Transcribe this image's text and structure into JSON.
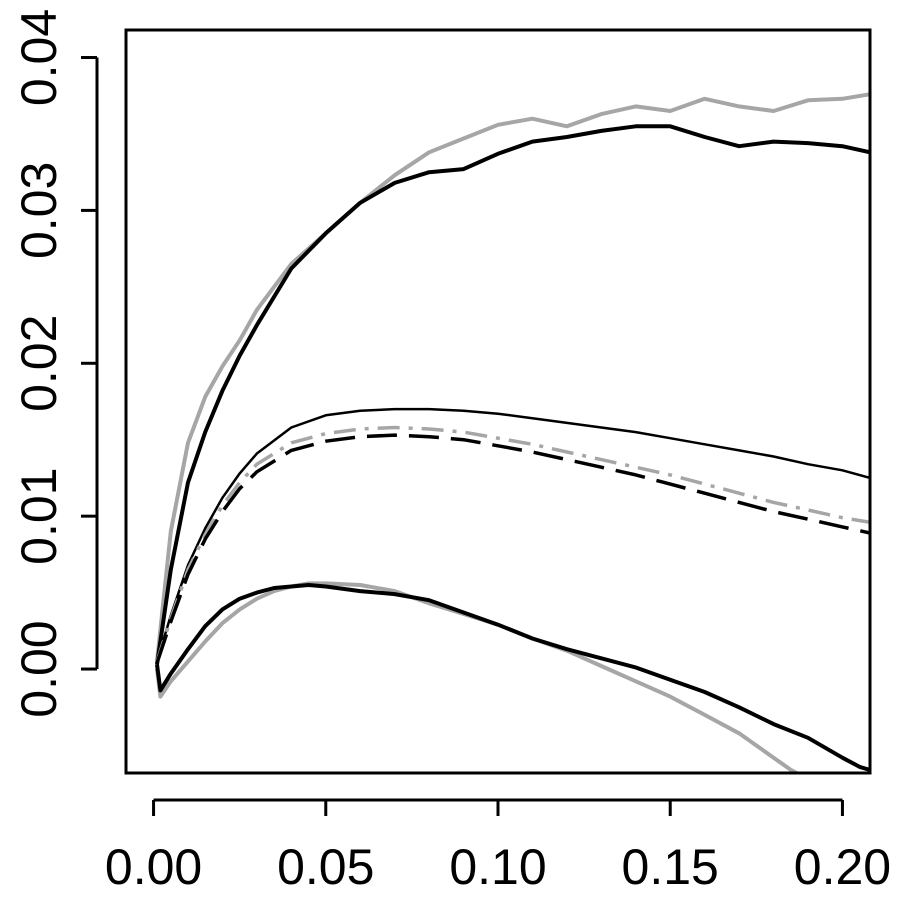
{
  "chart_data": {
    "type": "line",
    "title": "",
    "xlabel": "",
    "ylabel": "",
    "xlim": [
      -0.008,
      0.208
    ],
    "ylim": [
      -0.0068,
      0.0418
    ],
    "x_ticks": [
      0.0,
      0.05,
      0.1,
      0.15,
      0.2
    ],
    "x_tick_labels": [
      "0.00",
      "0.05",
      "0.10",
      "0.15",
      "0.20"
    ],
    "y_ticks": [
      0.0,
      0.01,
      0.02,
      0.03,
      0.04
    ],
    "y_tick_labels": [
      "0.00",
      "0.01",
      "0.02",
      "0.03",
      "0.04"
    ],
    "grid": false,
    "legend": "none",
    "series": [
      {
        "color": "#a6a6a6",
        "dash": "solid",
        "width": 4,
        "x": [
          0.001,
          0.005,
          0.01,
          0.015,
          0.02,
          0.025,
          0.03,
          0.04,
          0.05,
          0.06,
          0.07,
          0.08,
          0.09,
          0.1,
          0.11,
          0.12,
          0.13,
          0.14,
          0.15,
          0.16,
          0.17,
          0.18,
          0.19,
          0.2,
          0.208
        ],
        "y": [
          0.0005,
          0.009,
          0.0148,
          0.0178,
          0.0198,
          0.0215,
          0.0235,
          0.0265,
          0.0285,
          0.0305,
          0.0323,
          0.0338,
          0.0347,
          0.0356,
          0.036,
          0.0355,
          0.0363,
          0.0368,
          0.0365,
          0.0373,
          0.0368,
          0.0365,
          0.0372,
          0.0373,
          0.0376
        ]
      },
      {
        "color": "#000000",
        "dash": "solid",
        "width": 4,
        "x": [
          0.001,
          0.005,
          0.01,
          0.015,
          0.02,
          0.025,
          0.03,
          0.04,
          0.05,
          0.06,
          0.07,
          0.08,
          0.09,
          0.1,
          0.11,
          0.12,
          0.13,
          0.14,
          0.15,
          0.16,
          0.17,
          0.18,
          0.19,
          0.2,
          0.208
        ],
        "y": [
          0.0003,
          0.0065,
          0.0122,
          0.0155,
          0.0182,
          0.0205,
          0.0225,
          0.0262,
          0.0285,
          0.0305,
          0.0318,
          0.0325,
          0.0327,
          0.0337,
          0.0345,
          0.0348,
          0.0352,
          0.0355,
          0.0355,
          0.0348,
          0.0342,
          0.0345,
          0.0344,
          0.0342,
          0.0338
        ]
      },
      {
        "color": "#000000",
        "dash": "solid",
        "width": 2.5,
        "x": [
          0.001,
          0.005,
          0.01,
          0.015,
          0.02,
          0.025,
          0.03,
          0.04,
          0.05,
          0.06,
          0.07,
          0.08,
          0.09,
          0.1,
          0.11,
          0.12,
          0.13,
          0.14,
          0.15,
          0.16,
          0.17,
          0.18,
          0.19,
          0.2,
          0.208
        ],
        "y": [
          0.0005,
          0.0035,
          0.0068,
          0.0092,
          0.0112,
          0.0128,
          0.0141,
          0.0158,
          0.0166,
          0.0169,
          0.017,
          0.017,
          0.0169,
          0.0167,
          0.0164,
          0.0161,
          0.0158,
          0.0155,
          0.0151,
          0.0147,
          0.0143,
          0.0139,
          0.0134,
          0.013,
          0.0125
        ]
      },
      {
        "color": "#a6a6a6",
        "dash": "dashdot",
        "width": 3.5,
        "x": [
          0.001,
          0.005,
          0.01,
          0.015,
          0.02,
          0.025,
          0.03,
          0.04,
          0.05,
          0.06,
          0.07,
          0.08,
          0.09,
          0.1,
          0.11,
          0.12,
          0.13,
          0.14,
          0.15,
          0.16,
          0.17,
          0.18,
          0.19,
          0.2,
          0.208
        ],
        "y": [
          0.0005,
          0.0033,
          0.0065,
          0.0088,
          0.0107,
          0.0122,
          0.0134,
          0.0148,
          0.0154,
          0.0157,
          0.0158,
          0.0157,
          0.0155,
          0.0151,
          0.0147,
          0.0142,
          0.0137,
          0.0132,
          0.0127,
          0.0121,
          0.0115,
          0.0109,
          0.0104,
          0.0099,
          0.0096
        ]
      },
      {
        "color": "#000000",
        "dash": "longdash",
        "width": 3.5,
        "x": [
          0.001,
          0.005,
          0.01,
          0.015,
          0.02,
          0.025,
          0.03,
          0.04,
          0.05,
          0.06,
          0.07,
          0.08,
          0.09,
          0.1,
          0.11,
          0.12,
          0.13,
          0.14,
          0.15,
          0.16,
          0.17,
          0.18,
          0.19,
          0.2,
          0.208
        ],
        "y": [
          0.0004,
          0.0031,
          0.0062,
          0.0085,
          0.0103,
          0.0118,
          0.0129,
          0.0143,
          0.0149,
          0.0152,
          0.0153,
          0.0152,
          0.015,
          0.0146,
          0.0142,
          0.0137,
          0.0132,
          0.0127,
          0.0121,
          0.0115,
          0.0109,
          0.0103,
          0.0098,
          0.0093,
          0.0089
        ]
      },
      {
        "color": "#a6a6a6",
        "dash": "solid",
        "width": 4,
        "x": [
          0.001,
          0.002,
          0.005,
          0.01,
          0.015,
          0.02,
          0.025,
          0.03,
          0.035,
          0.04,
          0.045,
          0.05,
          0.06,
          0.07,
          0.08,
          0.09,
          0.1,
          0.11,
          0.12,
          0.13,
          0.14,
          0.15,
          0.16,
          0.17,
          0.18,
          0.185,
          0.19
        ],
        "y": [
          0.0,
          -0.0018,
          -0.0008,
          0.0005,
          0.0018,
          0.003,
          0.0039,
          0.0046,
          0.0051,
          0.0054,
          0.0056,
          0.0056,
          0.0055,
          0.0051,
          0.0043,
          0.0036,
          0.0029,
          0.002,
          0.0012,
          0.0002,
          -0.0008,
          -0.0018,
          -0.003,
          -0.0042,
          -0.0058,
          -0.0066,
          -0.0072
        ]
      },
      {
        "color": "#000000",
        "dash": "solid",
        "width": 4,
        "x": [
          0.001,
          0.002,
          0.005,
          0.01,
          0.015,
          0.02,
          0.025,
          0.03,
          0.035,
          0.04,
          0.045,
          0.05,
          0.06,
          0.07,
          0.08,
          0.09,
          0.1,
          0.11,
          0.12,
          0.13,
          0.14,
          0.15,
          0.16,
          0.17,
          0.18,
          0.19,
          0.2,
          0.205,
          0.208
        ],
        "y": [
          0.0003,
          -0.0014,
          -0.0003,
          0.0013,
          0.0028,
          0.0039,
          0.0046,
          0.005,
          0.0053,
          0.0054,
          0.0055,
          0.0054,
          0.0051,
          0.0049,
          0.0045,
          0.0037,
          0.0029,
          0.002,
          0.0013,
          0.0007,
          0.0001,
          -0.0007,
          -0.0015,
          -0.0025,
          -0.0036,
          -0.0045,
          -0.0058,
          -0.0064,
          -0.0066
        ]
      }
    ]
  }
}
